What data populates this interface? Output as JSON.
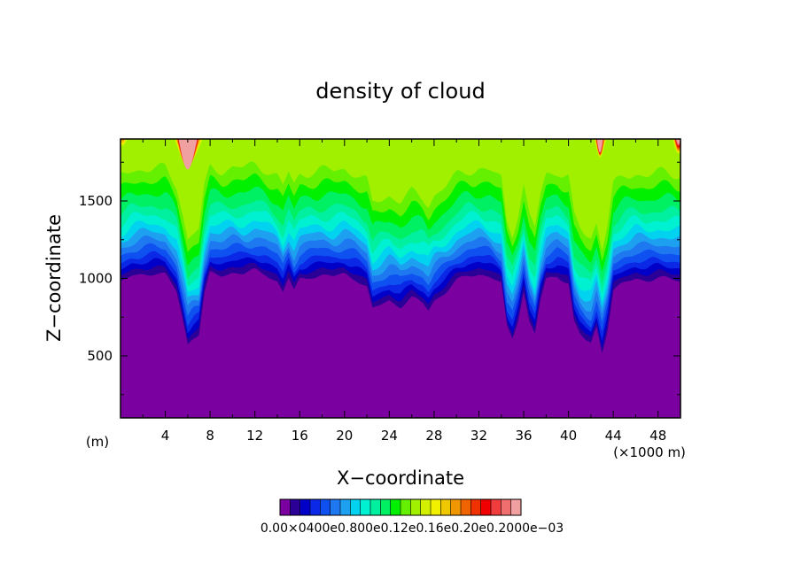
{
  "chart_data": {
    "type": "heatmap",
    "title": "density of cloud",
    "xlabel": "X−coordinate",
    "ylabel": "Z−coordinate",
    "x_unit_label": "(m)",
    "x_scale_label": "(×1000 m)",
    "xlim": [
      0,
      50
    ],
    "ylim": [
      100,
      1900
    ],
    "x_ticks": [
      4,
      8,
      12,
      16,
      20,
      24,
      28,
      32,
      36,
      40,
      44,
      48
    ],
    "x_tick_labels": [
      "4",
      "8",
      "12",
      "16",
      "20",
      "24",
      "28",
      "32",
      "36",
      "40",
      "44",
      "48"
    ],
    "y_ticks": [
      500,
      1000,
      1500
    ],
    "y_tick_labels": [
      "500",
      "1000",
      "1500"
    ],
    "colorbar": {
      "colors": [
        "#7a00a0",
        "#2a0096",
        "#0000c8",
        "#0a28e6",
        "#0f50f0",
        "#1e78f0",
        "#1ea0f0",
        "#00d2f0",
        "#00f0d2",
        "#00f0a0",
        "#00f064",
        "#00f000",
        "#64f000",
        "#a0f000",
        "#d2f000",
        "#f0f000",
        "#f0c800",
        "#f09600",
        "#f06400",
        "#f03200",
        "#f00000",
        "#f03c3c",
        "#f06e6e",
        "#f0a0a0"
      ],
      "label_text": "0.00×0400e0.800e0.12e0.16e0.20e0.2000e−03"
    },
    "surface_profile": {
      "x": [
        0,
        1,
        2,
        3,
        4,
        5,
        5.5,
        6,
        6.5,
        7,
        7.5,
        8,
        9,
        10,
        11,
        12,
        13,
        14,
        14.5,
        15,
        15.5,
        16,
        17,
        18,
        19,
        20,
        21,
        22,
        22.5,
        23,
        24,
        25,
        26,
        27,
        27.5,
        28,
        29,
        30,
        31,
        32,
        33,
        34,
        34.5,
        35,
        35.5,
        36,
        36.5,
        37,
        37.5,
        38,
        39,
        40,
        40.5,
        41,
        41.5,
        42,
        42.5,
        43,
        43.5,
        44,
        45,
        46,
        47,
        48,
        49,
        50
      ],
      "z": [
        930,
        975,
        990,
        995,
        980,
        880,
        720,
        540,
        580,
        600,
        860,
        990,
        980,
        1000,
        990,
        1010,
        990,
        940,
        870,
        960,
        880,
        950,
        975,
        980,
        970,
        990,
        960,
        900,
        760,
        780,
        820,
        780,
        830,
        800,
        760,
        820,
        870,
        940,
        980,
        990,
        970,
        920,
        650,
        580,
        700,
        880,
        680,
        600,
        820,
        950,
        980,
        930,
        680,
        600,
        560,
        540,
        650,
        490,
        640,
        880,
        930,
        960,
        950,
        960,
        955,
        950
      ]
    }
  }
}
